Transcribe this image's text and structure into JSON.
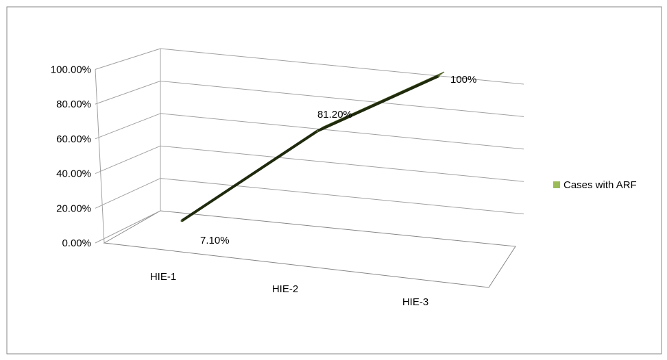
{
  "chart_data": {
    "type": "line",
    "categories": [
      "HIE-1",
      "HIE-2",
      "HIE-3"
    ],
    "series": [
      {
        "name": "Cases with ARF",
        "values": [
          7.1,
          81.2,
          100
        ],
        "data_labels": [
          "7.10%",
          "81.20%",
          "100%"
        ],
        "color": "#4f6228"
      }
    ],
    "y_ticks": [
      "0.00%",
      "20.00%",
      "40.00%",
      "60.00%",
      "80.00%",
      "100.00%"
    ],
    "ylim": [
      0,
      100
    ],
    "grid": true,
    "legend": "right",
    "perspective": "3d",
    "legend_swatch_color": "#9bbb59",
    "frame_color": "#868686",
    "gridline_color": "#a0a0a0"
  }
}
